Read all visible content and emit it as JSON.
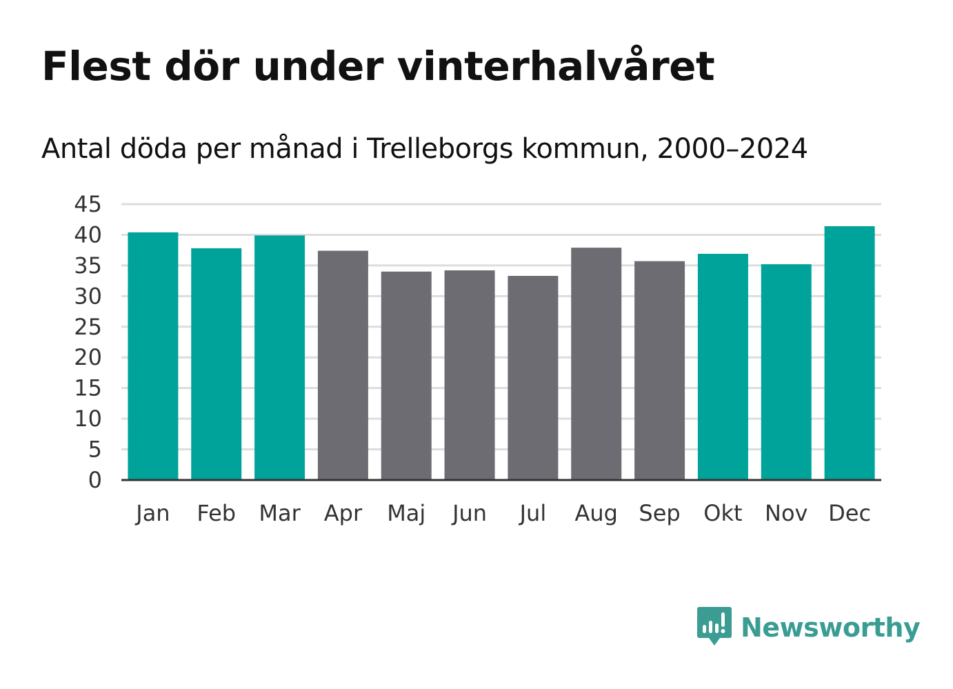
{
  "title": "Flest dör under vinterhalvåret",
  "subtitle": "Antal döda per månad i Trelleborgs kommun, 2000–2024",
  "brand": {
    "name": "Newsworthy",
    "icon": "newsworthy-logo-icon"
  },
  "colors": {
    "winter": "#00a39a",
    "summer": "#6d6c73",
    "grid": "#dddddd",
    "axis": "#333333",
    "brand": "#3a9c92"
  },
  "chart_data": {
    "type": "bar",
    "title": "Antal döda per månad i Trelleborgs kommun, 2000–2024",
    "xlabel": "",
    "ylabel": "",
    "ylim": [
      0,
      45
    ],
    "yticks": [
      "0",
      "5",
      "10",
      "15",
      "20",
      "25",
      "30",
      "35",
      "40",
      "45"
    ],
    "categories": [
      "Jan",
      "Feb",
      "Mar",
      "Apr",
      "Maj",
      "Jun",
      "Jul",
      "Aug",
      "Sep",
      "Okt",
      "Nov",
      "Dec"
    ],
    "values": [
      40.4,
      37.8,
      39.9,
      37.4,
      34.0,
      34.2,
      33.3,
      37.9,
      35.7,
      36.9,
      35.2,
      41.4
    ],
    "groups": [
      "winter",
      "winter",
      "winter",
      "summer",
      "summer",
      "summer",
      "summer",
      "summer",
      "summer",
      "winter",
      "winter",
      "winter"
    ],
    "grid": true
  }
}
